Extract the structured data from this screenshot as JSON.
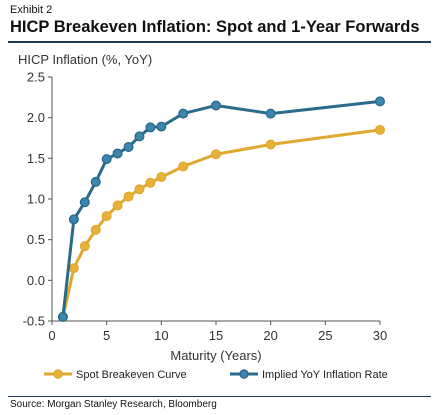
{
  "exhibit_label": "Exhibit 2",
  "headline": "HICP Breakeven Inflation: Spot and 1-Year Forwards",
  "source": "Source: Morgan Stanley Research, Bloomberg",
  "chart_data": {
    "type": "line",
    "ylabel": "HICP Inflation (%, YoY)",
    "xlabel": "Maturity (Years)",
    "xlim": [
      0,
      30
    ],
    "ylim": [
      -0.5,
      2.5
    ],
    "xticks": [
      0,
      5,
      10,
      15,
      20,
      25,
      30
    ],
    "yticks": [
      -0.5,
      0.0,
      0.5,
      1.0,
      1.5,
      2.0,
      2.5
    ],
    "xtick_labels": [
      "0",
      "5",
      "10",
      "15",
      "20",
      "25",
      "30"
    ],
    "ytick_labels": [
      "-0.5",
      "0.0",
      "0.5",
      "1.0",
      "1.5",
      "2.0",
      "2.5"
    ],
    "grid": false,
    "legend_position": "bottom",
    "series": [
      {
        "name": "Spot Breakeven Curve",
        "color": "#e0a82e",
        "marker_fill": "#e8b23a",
        "x": [
          1,
          2,
          3,
          4,
          5,
          6,
          7,
          8,
          9,
          10,
          12,
          15,
          20,
          30
        ],
        "y": [
          -0.45,
          0.15,
          0.42,
          0.62,
          0.79,
          0.92,
          1.03,
          1.12,
          1.2,
          1.27,
          1.4,
          1.55,
          1.67,
          1.85
        ]
      },
      {
        "name": "Implied YoY Inflation Rate",
        "color": "#2a6a8a",
        "marker_fill": "#3d86b0",
        "x": [
          1,
          2,
          3,
          4,
          5,
          6,
          7,
          8,
          9,
          10,
          12,
          15,
          20,
          30
        ],
        "y": [
          -0.45,
          0.75,
          0.96,
          1.21,
          1.49,
          1.56,
          1.64,
          1.77,
          1.88,
          1.89,
          2.05,
          2.15,
          2.05,
          2.2
        ]
      }
    ]
  }
}
